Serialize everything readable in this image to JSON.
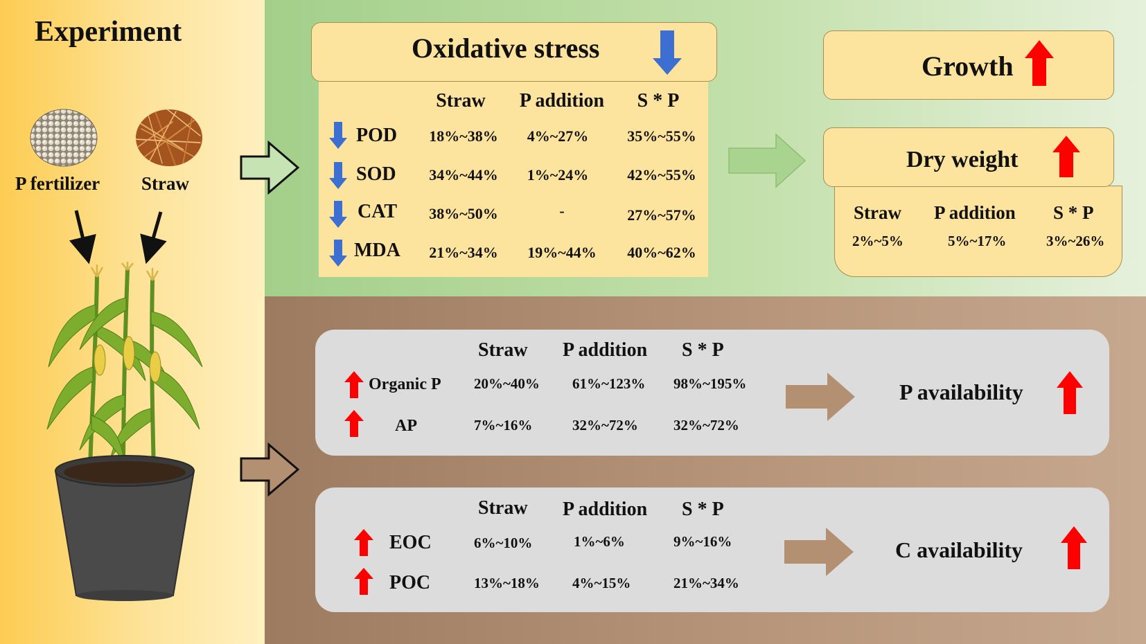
{
  "colors": {
    "down_arrow": "#3d6ed2",
    "up_arrow": "#ff0000",
    "yellow_box": "#fde49e",
    "grey_box": "#dcdcdc"
  },
  "experiment": {
    "title": "Experiment",
    "p_fertilizer_label": "P fertilizer",
    "straw_label": "Straw"
  },
  "oxidative_stress": {
    "title": "Oxidative stress",
    "headers": [
      "Straw",
      "P addition",
      "S * P"
    ],
    "rows": [
      {
        "name": "POD",
        "values": [
          "18%~38%",
          "4%~27%",
          "35%~55%"
        ]
      },
      {
        "name": "SOD",
        "values": [
          "34%~44%",
          "1%~24%",
          "42%~55%"
        ]
      },
      {
        "name": "CAT",
        "values": [
          "38%~50%",
          "-",
          "27%~57%"
        ]
      },
      {
        "name": "MDA",
        "values": [
          "21%~34%",
          "19%~44%",
          "40%~62%"
        ]
      }
    ]
  },
  "growth": {
    "title": "Growth"
  },
  "dry_weight": {
    "title": "Dry weight",
    "headers": [
      "Straw",
      "P addition",
      "S * P"
    ],
    "values": [
      "2%~5%",
      "5%~17%",
      "3%~26%"
    ]
  },
  "p_availability": {
    "title": "P availability",
    "headers": [
      "Straw",
      "P addition",
      "S * P"
    ],
    "rows": [
      {
        "name": "Organic P",
        "values": [
          "20%~40%",
          "61%~123%",
          "98%~195%"
        ]
      },
      {
        "name": "AP",
        "values": [
          "7%~16%",
          "32%~72%",
          "32%~72%"
        ]
      }
    ]
  },
  "c_availability": {
    "title": "C availability",
    "headers": [
      "Straw",
      "P addition",
      "S * P"
    ],
    "rows": [
      {
        "name": "EOC",
        "values": [
          "6%~10%",
          "1%~6%",
          "9%~16%"
        ]
      },
      {
        "name": "POC",
        "values": [
          "13%~18%",
          "4%~15%",
          "21%~34%"
        ]
      }
    ]
  }
}
